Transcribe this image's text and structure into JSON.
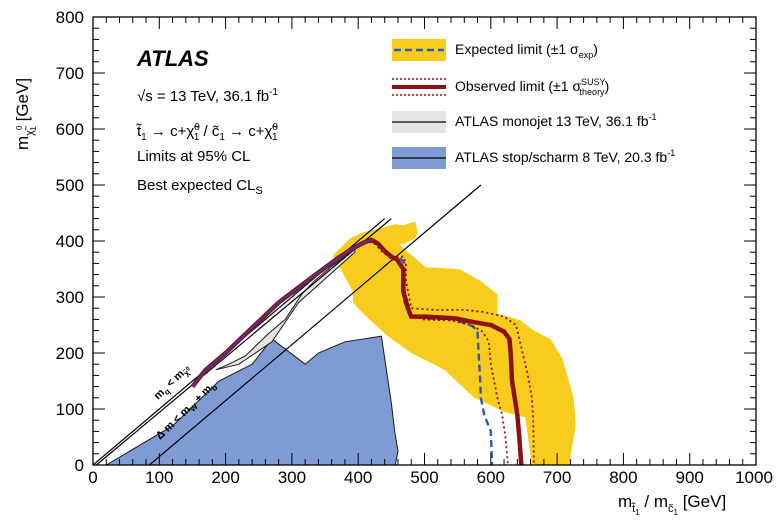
{
  "chart_data": {
    "type": "exclusion-contour",
    "xlabel": "m_t~1 / m_c~1 [GeV]",
    "ylabel": "m_χ~0_1 [GeV]",
    "xlim": [
      0,
      1000
    ],
    "ylim": [
      0,
      800
    ],
    "x_ticks": [
      "0",
      "100",
      "200",
      "300",
      "400",
      "500",
      "600",
      "700",
      "800",
      "900",
      "1000"
    ],
    "y_ticks": [
      "0",
      "100",
      "200",
      "300",
      "400",
      "500",
      "600",
      "700",
      "800"
    ],
    "brand": "ATLAS",
    "info_lines": [
      "√s = 13 TeV, 36.1 fb⁻¹",
      "t~1 → c+χ~0_1 / c~1 → c+χ~0_1",
      "Limits at 95% CL",
      "Best expected CL_S"
    ],
    "kinematic_labels": [
      "m_q < m_χ~0_1",
      "Δm < m_W + m_b"
    ],
    "colors": {
      "expected_band": "#f7cc1c",
      "expected_line": "#2f58b8",
      "observed": "#8b1018",
      "monojet_fill": "#e4e4e4",
      "stop8tev_fill": "#7f9bd4"
    },
    "legend": [
      "Expected limit (±1 σ_exp)",
      "Observed limit (±1 σ_theory^SUSY)",
      "ATLAS monojet 13 TeV, 36.1 fb⁻¹",
      "ATLAS stop/scharm 8 TeV, 20.3 fb⁻¹"
    ],
    "series": {
      "stop8tev": [
        [
          20,
          0
        ],
        [
          120,
          70
        ],
        [
          190,
          150
        ],
        [
          240,
          180
        ],
        [
          270,
          225
        ],
        [
          320,
          180
        ],
        [
          340,
          200
        ],
        [
          380,
          220
        ],
        [
          435,
          230
        ],
        [
          450,
          110
        ],
        [
          455,
          60
        ],
        [
          460,
          25
        ],
        [
          456,
          0
        ]
      ],
      "monojet": [
        [
          185,
          170
        ],
        [
          205,
          180
        ],
        [
          230,
          195
        ],
        [
          265,
          235
        ],
        [
          290,
          260
        ],
        [
          315,
          305
        ],
        [
          335,
          330
        ],
        [
          360,
          355
        ],
        [
          395,
          385
        ]
      ],
      "expected_band": [
        [
          362,
          375
        ],
        [
          388,
          405
        ],
        [
          405,
          415
        ],
        [
          440,
          425
        ],
        [
          456,
          430
        ],
        [
          468,
          428
        ],
        [
          486,
          435
        ],
        [
          490,
          415
        ],
        [
          485,
          405
        ],
        [
          470,
          395
        ],
        [
          462,
          393
        ],
        [
          502,
          353
        ],
        [
          552,
          350
        ],
        [
          584,
          329
        ],
        [
          610,
          305
        ],
        [
          610,
          270
        ],
        [
          627,
          265
        ],
        [
          645,
          258
        ],
        [
          665,
          240
        ],
        [
          690,
          225
        ],
        [
          708,
          190
        ],
        [
          725,
          120
        ],
        [
          728,
          70
        ],
        [
          718,
          0
        ],
        [
          662,
          0
        ],
        [
          652,
          85
        ],
        [
          620,
          95
        ],
        [
          575,
          120
        ],
        [
          530,
          170
        ],
        [
          480,
          200
        ],
        [
          445,
          230
        ],
        [
          412,
          265
        ],
        [
          392,
          290
        ],
        [
          392,
          310
        ]
      ],
      "expected": [
        [
          302,
          305
        ],
        [
          315,
          318
        ],
        [
          330,
          333
        ],
        [
          350,
          350
        ],
        [
          372,
          370
        ],
        [
          393,
          387
        ],
        [
          410,
          398
        ],
        [
          420,
          402
        ],
        [
          430,
          395
        ],
        [
          440,
          382
        ],
        [
          452,
          370
        ],
        [
          462,
          372
        ],
        [
          470,
          360
        ],
        [
          470,
          290
        ],
        [
          480,
          265
        ],
        [
          500,
          262
        ],
        [
          545,
          260
        ],
        [
          572,
          248
        ],
        [
          580,
          240
        ],
        [
          582,
          190
        ],
        [
          584,
          150
        ],
        [
          585,
          120
        ],
        [
          590,
          90
        ],
        [
          600,
          60
        ],
        [
          602,
          0
        ]
      ],
      "obs_upper": [
        [
          315,
          318
        ],
        [
          330,
          335
        ],
        [
          350,
          352
        ],
        [
          370,
          370
        ],
        [
          392,
          387
        ],
        [
          410,
          398
        ],
        [
          420,
          402
        ],
        [
          430,
          395
        ],
        [
          440,
          382
        ],
        [
          455,
          372
        ],
        [
          468,
          372
        ],
        [
          472,
          360
        ],
        [
          472,
          330
        ],
        [
          480,
          280
        ],
        [
          515,
          277
        ],
        [
          560,
          277
        ],
        [
          590,
          273
        ],
        [
          620,
          265
        ],
        [
          638,
          250
        ],
        [
          648,
          200
        ],
        [
          656,
          160
        ],
        [
          662,
          120
        ],
        [
          664,
          80
        ],
        [
          665,
          0
        ]
      ],
      "observed": [
        [
          150,
          140
        ],
        [
          170,
          170
        ],
        [
          200,
          200
        ],
        [
          240,
          245
        ],
        [
          280,
          290
        ],
        [
          330,
          335
        ],
        [
          370,
          370
        ],
        [
          392,
          387
        ],
        [
          410,
          398
        ],
        [
          420,
          402
        ],
        [
          430,
          395
        ],
        [
          440,
          382
        ],
        [
          452,
          370
        ],
        [
          458,
          368
        ],
        [
          468,
          350
        ],
        [
          468,
          310
        ],
        [
          475,
          280
        ],
        [
          480,
          265
        ],
        [
          500,
          265
        ],
        [
          545,
          262
        ],
        [
          575,
          255
        ],
        [
          600,
          250
        ],
        [
          620,
          238
        ],
        [
          628,
          225
        ],
        [
          630,
          200
        ],
        [
          632,
          150
        ],
        [
          636,
          120
        ],
        [
          640,
          90
        ],
        [
          643,
          50
        ],
        [
          646,
          0
        ]
      ],
      "obs_lower": [
        [
          380,
          372
        ],
        [
          398,
          392
        ],
        [
          412,
          400
        ],
        [
          425,
          395
        ],
        [
          435,
          382
        ],
        [
          448,
          370
        ],
        [
          456,
          368
        ],
        [
          466,
          350
        ],
        [
          468,
          300
        ],
        [
          472,
          285
        ],
        [
          478,
          268
        ],
        [
          498,
          260
        ],
        [
          540,
          258
        ],
        [
          570,
          250
        ],
        [
          588,
          238
        ],
        [
          597,
          220
        ],
        [
          600,
          180
        ],
        [
          605,
          150
        ],
        [
          610,
          120
        ],
        [
          617,
          90
        ],
        [
          622,
          50
        ],
        [
          626,
          0
        ]
      ]
    }
  }
}
